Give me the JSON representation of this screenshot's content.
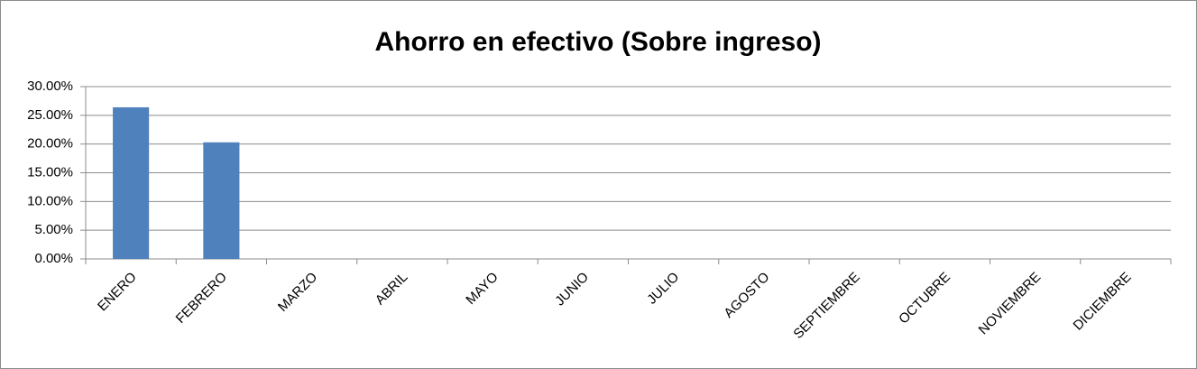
{
  "chart_data": {
    "type": "bar",
    "title": "Ahorro en efectivo (Sobre ingreso)",
    "categories": [
      "ENERO",
      "FEBRERO",
      "MARZO",
      "ABRIL",
      "MAYO",
      "JUNIO",
      "JULIO",
      "AGOSTO",
      "SEPTIEMBRE",
      "OCTUBRE",
      "NOVIEMBRE",
      "DICIEMBRE"
    ],
    "values": [
      26.4,
      20.3,
      0,
      0,
      0,
      0,
      0,
      0,
      0,
      0,
      0,
      0
    ],
    "color": "#4f81bd",
    "ylim": [
      0,
      30
    ],
    "yticks": [
      {
        "value": 0,
        "label": "0.00%"
      },
      {
        "value": 5,
        "label": "5.00%"
      },
      {
        "value": 10,
        "label": "10.00%"
      },
      {
        "value": 15,
        "label": "15.00%"
      },
      {
        "value": 20,
        "label": "20.00%"
      },
      {
        "value": 25,
        "label": "25.00%"
      },
      {
        "value": 30,
        "label": "30.00%"
      }
    ],
    "grid": true
  }
}
